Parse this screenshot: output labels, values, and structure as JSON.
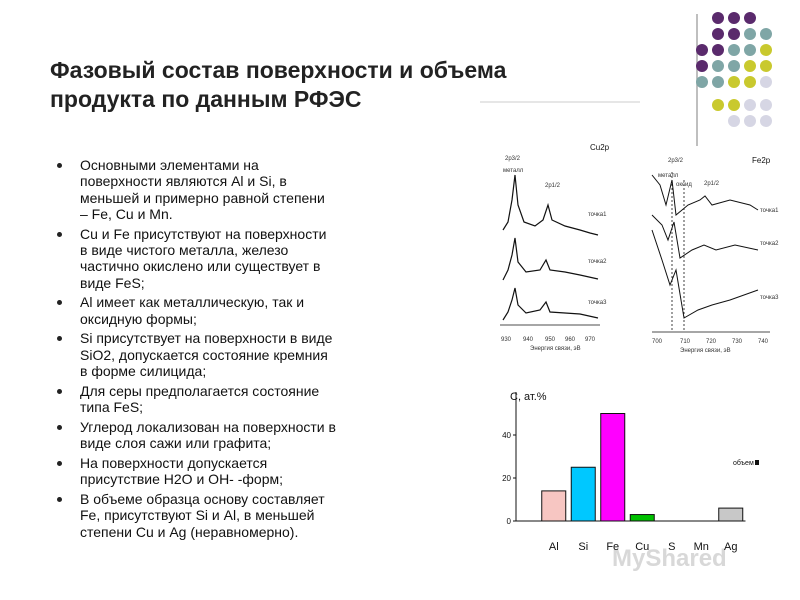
{
  "title": [
    "Фазовый состав поверхности и объема",
    "продукта по данным РФЭС"
  ],
  "bullets": [
    {
      "lines": [
        "Основными элементами на",
        "поверхности являются Al и Si, в",
        "меньшей  и примерно равной степени",
        "– Fe, Cu и Mn."
      ]
    },
    {
      "lines": [
        "Cu и Fe присутствуют на поверхности",
        "в виде чистого металла, железо",
        "частично окислено или существует в",
        "виде FeS;"
      ]
    },
    {
      "lines": [
        "Al имеет как металлическую, так и",
        "оксидную формы;"
      ]
    },
    {
      "lines": [
        "Si присутствует на поверхности в виде",
        "SiO2, допускается состояние кремния",
        "в форме силицида;"
      ]
    },
    {
      "lines": [
        "Для серы предполагается состояние",
        "типа FeS;"
      ]
    },
    {
      "lines": [
        "Углерод локализован на поверхности в",
        "виде слоя сажи или графита;"
      ]
    },
    {
      "lines": [
        "На поверхности допускается",
        "присутствие H2O и OH- -форм;"
      ]
    },
    {
      "lines": [
        "В объеме образца основу составляет",
        "Fe, присутствуют Si и Al, в меньшей",
        "степени Cu и Ag (неравномерно)."
      ]
    }
  ],
  "spectra": {
    "cu": {
      "title": "Cu2p",
      "peak1": "2p3/2",
      "metal": "металл",
      "peak2": "2p1/2",
      "points": [
        "точка1",
        "точка2",
        "точка3"
      ],
      "xticks": [
        "930",
        "940",
        "950",
        "960",
        "970"
      ],
      "xlabel": "Энергия связи, эВ"
    },
    "fe": {
      "title": "Fe2p",
      "peak1": "2p3/2",
      "metal": "металл",
      "oxide": "оксид",
      "peak2": "2p1/2",
      "points": [
        "точка1",
        "точка2",
        "точка3"
      ],
      "xticks": [
        "700",
        "710",
        "720",
        "730",
        "740"
      ],
      "xlabel": "Энергия связи, эВ"
    }
  },
  "chart_data": {
    "type": "bar",
    "y_label": "C, ат.%",
    "categories": [
      "Al",
      "Si",
      "Fe",
      "Cu",
      "S",
      "Mn",
      "Ag"
    ],
    "series": [
      {
        "name": "объем",
        "values": [
          14,
          25,
          50,
          3,
          0,
          0,
          6
        ]
      }
    ],
    "colors": [
      "#f7c6c2",
      "#00c8ff",
      "#ff00ff",
      "#00c000",
      "#999999",
      "#999999",
      "#c8c8c8"
    ],
    "ylim": [
      0,
      60
    ],
    "yticks": [
      0,
      20,
      40
    ],
    "legend": "right"
  },
  "watermark": "MyShared"
}
